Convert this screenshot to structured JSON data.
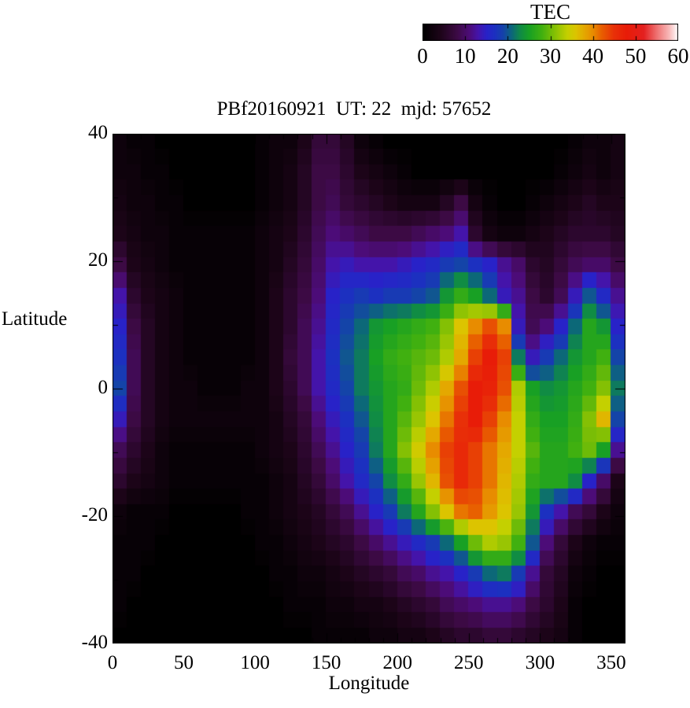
{
  "title": "PBf20160921  UT: 22  mjd: 57652",
  "colorbar": {
    "label": "TEC",
    "ticks": [
      0,
      10,
      20,
      30,
      40,
      50,
      60
    ],
    "min": 0,
    "max": 60
  },
  "axes": {
    "xlabel": "Longitude",
    "ylabel": "Latitude",
    "x_ticks": [
      0,
      50,
      100,
      150,
      200,
      250,
      300,
      350
    ],
    "y_ticks": [
      40,
      20,
      0,
      -20,
      -40
    ],
    "xlim": [
      0,
      360
    ],
    "ylim": [
      -40,
      40
    ]
  },
  "chart_data": {
    "type": "heatmap",
    "title": "PBf20160921  UT: 22  mjd: 57652",
    "value_label": "TEC",
    "value_range": [
      0,
      60
    ],
    "lon_start": 0,
    "lon_step": 10,
    "lat_rows": [
      40,
      35,
      30,
      25,
      20,
      15,
      10,
      5,
      0,
      -5,
      -10,
      -15,
      -20,
      -25,
      -30,
      -35,
      -40
    ],
    "values": [
      [
        2,
        1,
        1,
        0,
        0,
        0,
        0,
        0,
        0,
        0,
        1,
        2,
        2,
        4,
        7,
        7,
        5,
        2,
        1,
        0,
        0,
        0,
        0,
        0,
        0,
        0,
        0,
        0,
        0,
        0,
        0,
        0,
        1,
        2,
        2,
        3
      ],
      [
        2,
        2,
        1,
        1,
        0,
        0,
        0,
        0,
        0,
        0,
        1,
        2,
        3,
        5,
        8,
        8,
        6,
        4,
        3,
        2,
        1,
        0,
        0,
        0,
        0,
        0,
        0,
        0,
        0,
        0,
        0,
        1,
        2,
        3,
        2,
        3
      ],
      [
        3,
        2,
        2,
        1,
        1,
        0,
        0,
        0,
        0,
        0,
        1,
        2,
        3,
        5,
        8,
        9,
        7,
        6,
        5,
        4,
        3,
        3,
        3,
        5,
        8,
        3,
        1,
        0,
        0,
        1,
        2,
        3,
        4,
        5,
        4,
        4
      ],
      [
        4,
        3,
        2,
        2,
        1,
        1,
        1,
        1,
        1,
        1,
        2,
        3,
        4,
        6,
        9,
        11,
        10,
        9,
        8,
        8,
        8,
        9,
        10,
        11,
        13,
        6,
        3,
        2,
        2,
        3,
        4,
        5,
        6,
        6,
        6,
        5
      ],
      [
        8,
        4,
        3,
        2,
        1,
        1,
        1,
        1,
        1,
        1,
        2,
        3,
        5,
        7,
        10,
        13,
        14,
        13,
        13,
        13,
        14,
        15,
        16,
        18,
        19,
        17,
        15,
        12,
        10,
        6,
        5,
        7,
        9,
        10,
        10,
        8
      ],
      [
        13,
        6,
        4,
        3,
        2,
        1,
        1,
        1,
        1,
        1,
        2,
        4,
        6,
        8,
        11,
        15,
        17,
        18,
        17,
        18,
        18,
        19,
        20,
        24,
        27,
        25,
        21,
        14,
        12,
        8,
        6,
        9,
        14,
        20,
        16,
        12
      ],
      [
        15,
        8,
        5,
        3,
        2,
        1,
        1,
        1,
        1,
        1,
        2,
        4,
        6,
        9,
        12,
        16,
        19,
        21,
        24,
        25,
        26,
        27,
        28,
        31,
        36,
        40,
        43,
        40,
        14,
        9,
        11,
        15,
        21,
        26,
        24,
        15
      ],
      [
        17,
        9,
        5,
        3,
        2,
        1,
        1,
        1,
        1,
        1,
        2,
        4,
        7,
        9,
        13,
        17,
        20,
        22,
        25,
        27,
        28,
        29,
        30,
        33,
        38,
        44,
        48,
        44,
        22,
        14,
        18,
        21,
        24,
        26,
        28,
        19
      ],
      [
        19,
        9,
        5,
        3,
        2,
        2,
        1,
        1,
        1,
        2,
        2,
        4,
        6,
        9,
        13,
        16,
        19,
        22,
        24,
        26,
        27,
        30,
        33,
        38,
        43,
        48,
        47,
        43,
        33,
        25,
        23,
        24,
        26,
        28,
        31,
        22
      ],
      [
        14,
        8,
        5,
        3,
        2,
        2,
        2,
        2,
        2,
        2,
        2,
        3,
        5,
        7,
        11,
        14,
        17,
        20,
        23,
        26,
        29,
        32,
        36,
        41,
        45,
        48,
        44,
        40,
        34,
        27,
        25,
        25,
        27,
        31,
        37,
        19
      ],
      [
        9,
        6,
        4,
        2,
        1,
        1,
        1,
        1,
        1,
        1,
        2,
        3,
        4,
        6,
        9,
        12,
        15,
        18,
        22,
        26,
        31,
        35,
        40,
        44,
        46,
        44,
        41,
        38,
        34,
        29,
        26,
        26,
        28,
        30,
        25,
        12
      ],
      [
        6,
        4,
        3,
        2,
        1,
        1,
        1,
        1,
        1,
        1,
        1,
        2,
        3,
        5,
        7,
        10,
        13,
        16,
        19,
        23,
        27,
        32,
        37,
        43,
        46,
        44,
        41,
        37,
        33,
        27,
        26,
        26,
        23,
        15,
        10,
        4
      ],
      [
        2,
        1,
        1,
        1,
        0,
        0,
        0,
        0,
        0,
        1,
        1,
        2,
        3,
        4,
        5,
        7,
        9,
        12,
        15,
        18,
        22,
        26,
        31,
        36,
        41,
        42,
        39,
        36,
        32,
        24,
        17,
        13,
        9,
        7,
        4,
        2
      ],
      [
        1,
        1,
        1,
        0,
        0,
        0,
        0,
        0,
        0,
        0,
        1,
        1,
        2,
        3,
        4,
        5,
        6,
        8,
        10,
        12,
        14,
        16,
        18,
        21,
        25,
        30,
        33,
        32,
        28,
        20,
        11,
        7,
        4,
        2,
        1,
        1
      ],
      [
        1,
        1,
        0,
        0,
        0,
        0,
        0,
        0,
        0,
        0,
        0,
        1,
        1,
        2,
        2,
        3,
        4,
        5,
        6,
        7,
        9,
        10,
        12,
        13,
        15,
        18,
        21,
        22,
        18,
        12,
        7,
        5,
        2,
        1,
        0,
        0
      ],
      [
        1,
        0,
        0,
        0,
        0,
        0,
        0,
        0,
        0,
        0,
        0,
        0,
        1,
        1,
        1,
        2,
        2,
        3,
        3,
        4,
        5,
        6,
        7,
        9,
        10,
        11,
        12,
        12,
        11,
        8,
        6,
        4,
        1,
        0,
        0,
        0
      ],
      [
        0,
        0,
        0,
        0,
        0,
        0,
        0,
        0,
        0,
        0,
        0,
        0,
        0,
        0,
        1,
        1,
        1,
        1,
        2,
        2,
        3,
        3,
        4,
        5,
        6,
        6,
        7,
        7,
        6,
        5,
        4,
        3,
        1,
        0,
        0,
        0
      ]
    ],
    "colormap_stops": [
      [
        0,
        "#000000"
      ],
      [
        4,
        "#1c0418"
      ],
      [
        8,
        "#3c0a44"
      ],
      [
        11,
        "#4c0c78"
      ],
      [
        13,
        "#4414aa"
      ],
      [
        15,
        "#2822c8"
      ],
      [
        17,
        "#1c30c0"
      ],
      [
        19,
        "#1444a8"
      ],
      [
        21,
        "#0c6878"
      ],
      [
        23,
        "#108c44"
      ],
      [
        25,
        "#18a024"
      ],
      [
        28,
        "#40b010"
      ],
      [
        31,
        "#84c004"
      ],
      [
        34,
        "#c4d000"
      ],
      [
        36,
        "#dcc400"
      ],
      [
        38,
        "#e4a800"
      ],
      [
        40,
        "#e88c00"
      ],
      [
        42,
        "#e86000"
      ],
      [
        45,
        "#e83008"
      ],
      [
        48,
        "#e81c08"
      ],
      [
        52,
        "#e42020"
      ],
      [
        55,
        "#ee7070"
      ],
      [
        58,
        "#f8baba"
      ],
      [
        60,
        "#ffffff"
      ]
    ],
    "frame_color": "#000000",
    "background_color": "#ffffff"
  }
}
